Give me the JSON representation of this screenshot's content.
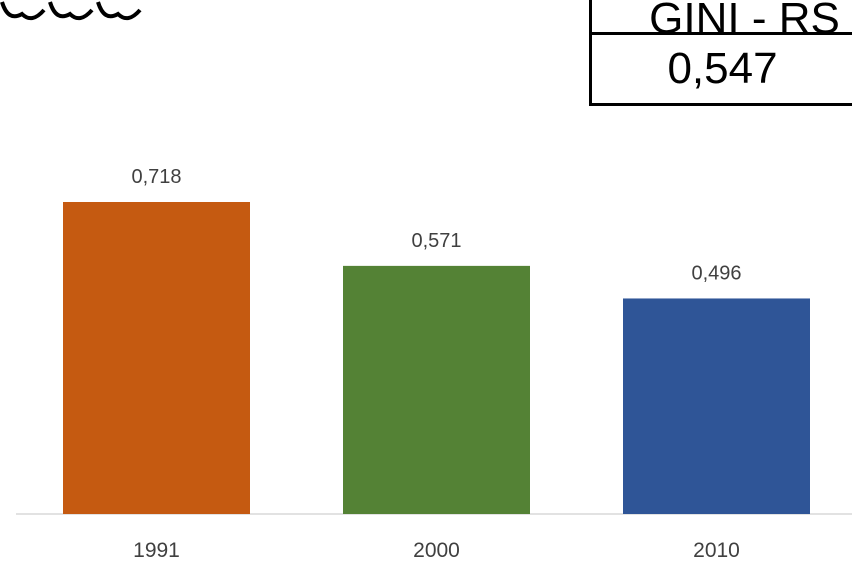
{
  "gini_box": {
    "title": "GINI - RS",
    "value": "0,547"
  },
  "chart_data": {
    "type": "bar",
    "categories": [
      "1991",
      "2000",
      "2010"
    ],
    "values": [
      0.718,
      0.571,
      0.496
    ],
    "data_labels": [
      "0,718",
      "0,571",
      "0,496"
    ],
    "colors": [
      "#c55a11",
      "#548235",
      "#2f5597"
    ],
    "ylim": [
      0,
      0.718
    ],
    "grid": false,
    "legend": "none"
  }
}
